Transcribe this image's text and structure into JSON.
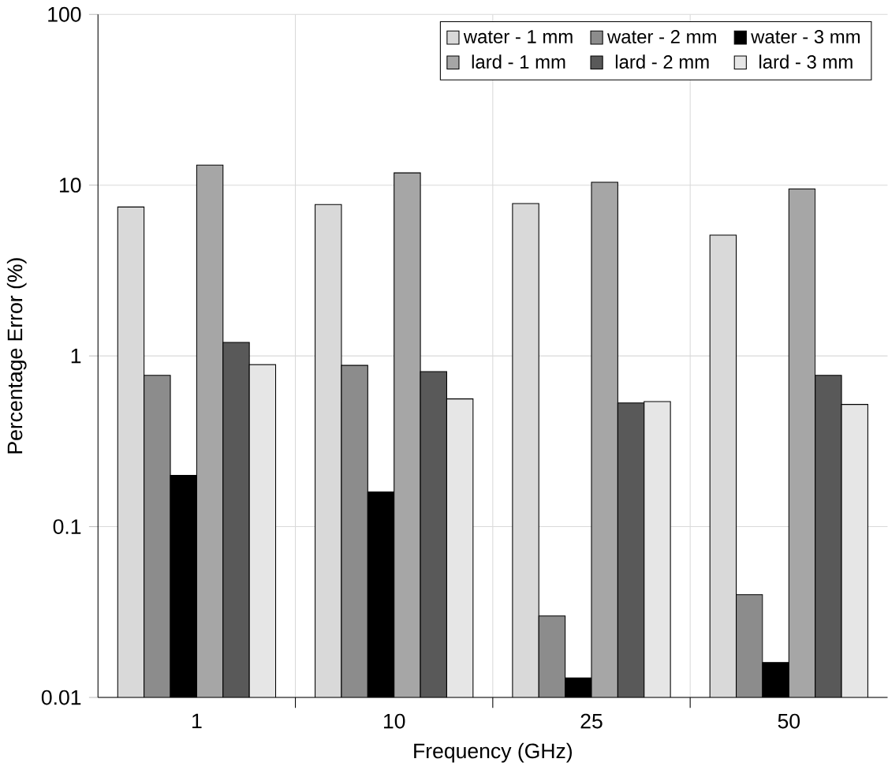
{
  "chart_data": {
    "type": "bar",
    "xlabel": "Frequency (GHz)",
    "ylabel": "Percentage Error (%)",
    "categories": [
      "1",
      "10",
      "25",
      "50"
    ],
    "log": true,
    "ylim": [
      0.01,
      100
    ],
    "yticks": [
      0.01,
      0.1,
      1,
      10,
      100
    ],
    "grid": true,
    "legend": "top right",
    "series": [
      {
        "name": "water - 1 mm",
        "color": "#d9d9d9",
        "values": [
          7.45,
          7.7,
          7.8,
          5.1
        ]
      },
      {
        "name": "water - 2 mm",
        "color": "#8c8c8c",
        "values": [
          0.77,
          0.88,
          0.03,
          0.04
        ]
      },
      {
        "name": "water - 3 mm",
        "color": "#000000",
        "values": [
          0.2,
          0.16,
          0.013,
          0.016
        ]
      },
      {
        "name": "lard - 1 mm",
        "color": "#a6a6a6",
        "values": [
          13.1,
          11.8,
          10.4,
          9.5
        ]
      },
      {
        "name": "lard - 2 mm",
        "color": "#595959",
        "values": [
          1.2,
          0.81,
          0.53,
          0.77
        ]
      },
      {
        "name": "lard - 3 mm",
        "color": "#e6e6e6",
        "values": [
          0.89,
          0.56,
          0.54,
          0.52
        ]
      }
    ]
  }
}
